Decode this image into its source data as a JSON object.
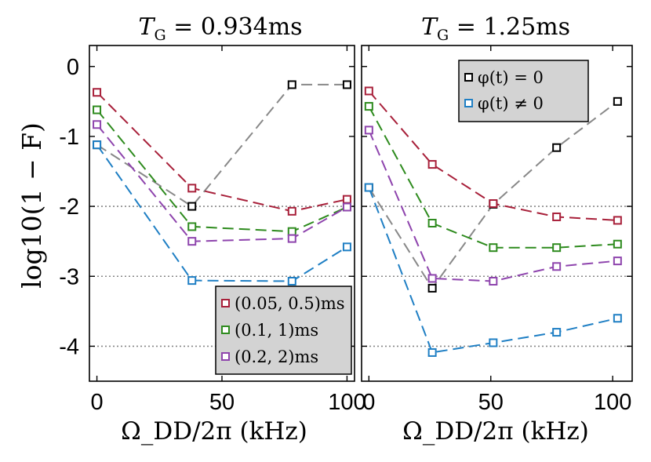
{
  "chart_data": [
    {
      "type": "line",
      "title": "T_G = 0.934ms",
      "title_parts": {
        "main": "T",
        "sub": "G",
        "rest": " = 0.934ms"
      },
      "xlabel": "Ω_DD/2π (kHz)",
      "ylabel": "log10(1 − F)",
      "xlim": [
        -3,
        103
      ],
      "ylim": [
        -4.5,
        0.3
      ],
      "xticks": [
        0,
        50,
        100
      ],
      "xtick_labels": [
        "0",
        "50",
        "100"
      ],
      "yticks": [
        0,
        -1,
        -2,
        -3,
        -4
      ],
      "ytick_labels": [
        "0",
        "-1",
        "-2",
        "-3",
        "-4"
      ],
      "reference_lines": [
        -2,
        -3,
        -4
      ],
      "series": [
        {
          "name": "(0.05, 0.5)ms",
          "color": "#a8203a",
          "x": [
            0,
            38,
            78,
            100
          ],
          "values": [
            -0.37,
            -1.74,
            -2.07,
            -1.9
          ]
        },
        {
          "name": "(0.1, 1)ms",
          "color": "#2e8b1e",
          "x": [
            0,
            38,
            78,
            100
          ],
          "values": [
            -0.62,
            -2.29,
            -2.36,
            -2.01
          ]
        },
        {
          "name": "(0.2, 2)ms",
          "color": "#8e44ad",
          "x": [
            0,
            38,
            78,
            100
          ],
          "values": [
            -0.83,
            -2.5,
            -2.46,
            -2.01
          ]
        },
        {
          "name": "φ(t) = 0",
          "color": "#000000",
          "line_color": "#888888",
          "x": [
            0,
            38,
            78,
            100
          ],
          "values": [
            -1.12,
            -2.0,
            -0.26,
            -0.26
          ]
        },
        {
          "name": "φ(t) ≠ 0",
          "color": "#1f7fc4",
          "x": [
            0,
            38,
            78,
            100
          ],
          "values": [
            -1.12,
            -3.06,
            -3.07,
            -2.58
          ]
        }
      ],
      "legend": {
        "placement": "bottom-right",
        "entries": [
          {
            "label": "(0.05, 0.5)ms",
            "color": "#a8203a"
          },
          {
            "label": "(0.1, 1)ms",
            "color": "#2e8b1e"
          },
          {
            "label": "(0.2, 2)ms",
            "color": "#8e44ad"
          }
        ]
      }
    },
    {
      "type": "line",
      "title": "T_G = 1.25ms",
      "title_parts": {
        "main": "T",
        "sub": "G",
        "rest": " = 1.25ms"
      },
      "xlabel": "Ω_DD/2π (kHz)",
      "ylabel": "",
      "xlim": [
        -3,
        108
      ],
      "ylim": [
        -4.5,
        0.3
      ],
      "xticks": [
        0,
        50,
        100
      ],
      "xtick_labels": [
        "0",
        "50",
        "100"
      ],
      "yticks": [],
      "ytick_labels": [],
      "reference_lines": [
        -2,
        -3,
        -4
      ],
      "series": [
        {
          "name": "(0.05, 0.5)ms",
          "color": "#a8203a",
          "x": [
            0,
            26,
            51,
            77,
            102
          ],
          "values": [
            -0.35,
            -1.4,
            -1.96,
            -2.15,
            -2.2
          ]
        },
        {
          "name": "(0.1, 1)ms",
          "color": "#2e8b1e",
          "x": [
            0,
            26,
            51,
            77,
            102
          ],
          "values": [
            -0.57,
            -2.24,
            -2.59,
            -2.59,
            -2.54
          ]
        },
        {
          "name": "(0.2, 2)ms",
          "color": "#8e44ad",
          "x": [
            0,
            26,
            51,
            77,
            102
          ],
          "values": [
            -0.91,
            -3.03,
            -3.07,
            -2.86,
            -2.78
          ]
        },
        {
          "name": "φ(t) = 0",
          "color": "#000000",
          "line_color": "#888888",
          "x": [
            0,
            26,
            51,
            77,
            102
          ],
          "values": [
            -1.73,
            -3.17,
            -1.97,
            -1.16,
            -0.5
          ]
        },
        {
          "name": "φ(t) ≠ 0",
          "color": "#1f7fc4",
          "x": [
            0,
            26,
            51,
            77,
            102
          ],
          "values": [
            -1.73,
            -4.09,
            -3.95,
            -3.8,
            -3.6
          ]
        }
      ],
      "legend": {
        "placement": "top-right",
        "entries": [
          {
            "label": "φ(t) = 0",
            "color": "#000000"
          },
          {
            "label": "φ(t) ≠ 0",
            "color": "#1f7fc4"
          }
        ]
      }
    }
  ],
  "colors": {
    "legend_background": "#d3d3d3",
    "reference_line": "#888888"
  }
}
